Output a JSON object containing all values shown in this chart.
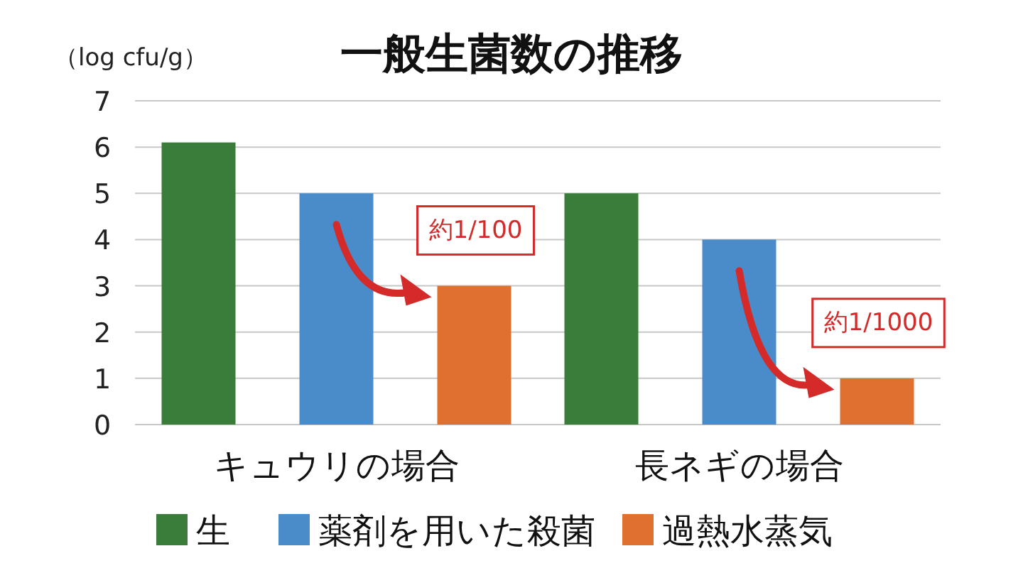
{
  "chart_data": {
    "type": "bar",
    "title": "一般生菌数の推移",
    "ylabel": "（log cfu/g）",
    "categories": [
      "キュウリの場合",
      "長ネギの場合"
    ],
    "series": [
      {
        "name": "生",
        "color": "#3a7d3a",
        "values": [
          6.1,
          5.0
        ]
      },
      {
        "name": "薬剤を用いた殺菌",
        "color": "#4a8cc9",
        "values": [
          5.0,
          4.0
        ]
      },
      {
        "name": "過熱水蒸気",
        "color": "#e07030",
        "values": [
          3.0,
          1.0
        ]
      }
    ],
    "ylim": [
      0,
      7
    ],
    "yticks": [
      0,
      1,
      2,
      3,
      4,
      5,
      6,
      7
    ],
    "grid": "y",
    "legend": "bottom",
    "annotations": [
      "約1/100",
      "約1/1000"
    ]
  }
}
